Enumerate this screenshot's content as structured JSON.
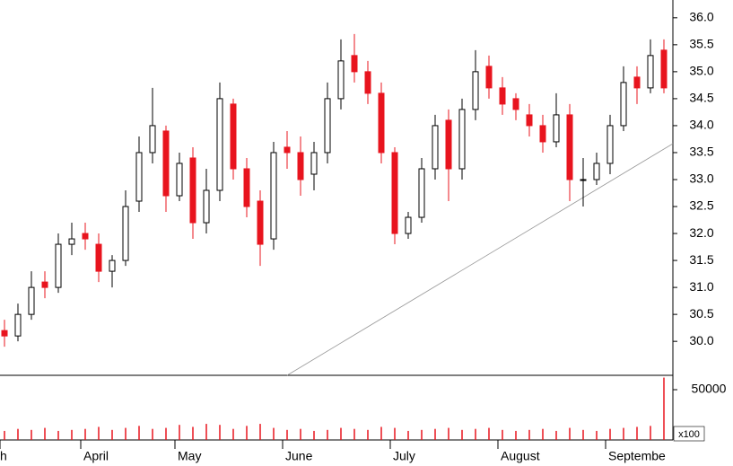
{
  "chart_data": {
    "type": "candlestick",
    "categories": [
      "h",
      null,
      null,
      null,
      null,
      null,
      "April",
      null,
      null,
      null,
      null,
      null,
      null,
      "May",
      null,
      null,
      null,
      null,
      null,
      null,
      null,
      "June",
      null,
      null,
      null,
      null,
      null,
      null,
      null,
      "July",
      null,
      null,
      null,
      null,
      null,
      null,
      null,
      "August",
      null,
      null,
      null,
      null,
      null,
      null,
      null,
      "Septembe",
      null,
      null,
      null,
      null
    ],
    "open": [
      30.2,
      30.1,
      30.5,
      31.1,
      31.0,
      31.8,
      32.0,
      31.8,
      31.3,
      31.5,
      32.6,
      33.5,
      33.9,
      32.7,
      33.4,
      32.2,
      32.8,
      34.4,
      33.2,
      32.6,
      31.9,
      33.6,
      33.5,
      33.1,
      33.5,
      34.5,
      35.3,
      35.0,
      34.6,
      33.5,
      32.0,
      32.3,
      33.2,
      34.1,
      33.2,
      34.3,
      35.1,
      34.7,
      34.5,
      34.2,
      34.0,
      33.7,
      34.2,
      33.0,
      33.0,
      33.3,
      34.0,
      34.9,
      34.7,
      35.4
    ],
    "high": [
      30.4,
      30.7,
      31.3,
      31.3,
      32.0,
      32.2,
      32.2,
      32.0,
      31.6,
      32.8,
      33.8,
      34.7,
      34.0,
      33.5,
      33.6,
      33.2,
      34.8,
      34.5,
      33.4,
      32.8,
      33.7,
      33.9,
      33.8,
      33.7,
      34.8,
      35.6,
      35.7,
      35.2,
      34.8,
      33.6,
      32.4,
      33.4,
      34.2,
      34.3,
      34.5,
      35.4,
      35.3,
      34.9,
      34.6,
      34.4,
      34.2,
      34.6,
      34.4,
      33.4,
      33.5,
      34.2,
      35.1,
      35.1,
      35.6,
      35.6
    ],
    "low": [
      29.9,
      30.0,
      30.4,
      30.8,
      30.9,
      31.6,
      31.7,
      31.1,
      31.0,
      31.4,
      32.4,
      33.3,
      32.4,
      32.6,
      31.9,
      32.0,
      32.6,
      33.0,
      32.3,
      31.4,
      31.7,
      33.2,
      32.7,
      32.8,
      33.3,
      34.3,
      34.8,
      34.4,
      33.3,
      31.8,
      31.9,
      32.2,
      33.0,
      32.6,
      33.0,
      34.1,
      34.5,
      34.2,
      34.1,
      33.8,
      33.5,
      33.6,
      32.6,
      32.5,
      32.9,
      33.1,
      33.9,
      34.4,
      34.6,
      34.6
    ],
    "close": [
      30.1,
      30.5,
      31.0,
      31.0,
      31.8,
      31.9,
      31.9,
      31.3,
      31.5,
      32.5,
      33.5,
      34.0,
      32.7,
      33.3,
      32.2,
      32.8,
      34.5,
      33.2,
      32.5,
      31.8,
      33.5,
      33.5,
      33.0,
      33.5,
      34.5,
      35.2,
      35.0,
      34.6,
      33.5,
      32.0,
      32.3,
      33.2,
      34.0,
      33.2,
      34.3,
      35.0,
      34.7,
      34.4,
      34.3,
      34.0,
      33.7,
      34.2,
      33.0,
      33.0,
      33.3,
      34.0,
      34.8,
      34.7,
      35.3,
      34.7
    ],
    "up_color": "#000000",
    "down_color": "#e8141e",
    "ylim": [
      29.37,
      36.33
    ],
    "yticks": [
      {
        "value": 30,
        "label": "30.0"
      },
      30.5,
      {
        "value": 31,
        "label": "31.0"
      },
      31.5,
      {
        "value": 32,
        "label": "32.0"
      },
      32.5,
      {
        "value": 33,
        "label": "33.0"
      },
      33.5,
      {
        "value": 34,
        "label": "34.0"
      },
      34.5,
      {
        "value": 35,
        "label": "35.0"
      },
      35.5,
      {
        "value": 36,
        "label": "36.0"
      }
    ],
    "volume": {
      "values": [
        9000,
        11000,
        10000,
        12000,
        9000,
        10000,
        11000,
        13000,
        10000,
        12000,
        14000,
        11000,
        12000,
        15000,
        13000,
        16000,
        15000,
        11000,
        14000,
        16000,
        12000,
        10000,
        11000,
        9000,
        10000,
        12000,
        11000,
        10000,
        13000,
        12000,
        9000,
        10000,
        11000,
        12000,
        10000,
        11000,
        12000,
        10000,
        9000,
        10000,
        11000,
        9000,
        12000,
        10000,
        9000,
        11000,
        12000,
        13000,
        14000,
        62000
      ],
      "color": "#e8141e",
      "ylim": [
        0,
        64286
      ],
      "yticks": [
        50000
      ],
      "unit_label": "x100"
    }
  }
}
